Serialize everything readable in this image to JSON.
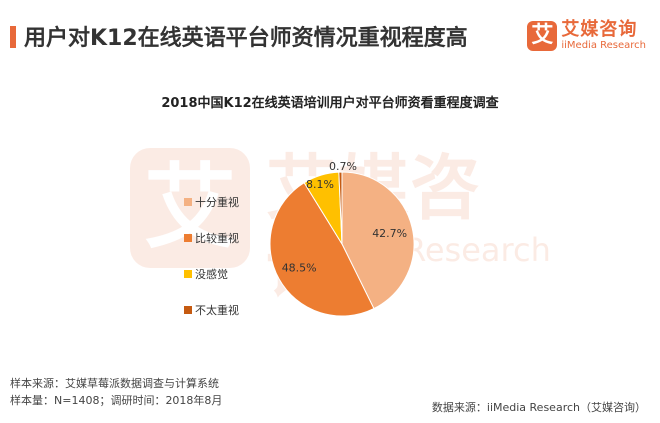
{
  "header": {
    "title": "用户对K12在线英语平台师资情况重视程度高",
    "accent_color": "#e8693a"
  },
  "brand": {
    "logo_char": "艾",
    "name": "艾媒咨询",
    "sub": "iiMedia Research"
  },
  "watermark": {
    "logo_char": "艾",
    "name": "艾媒咨询",
    "sub": "iiMedia Research"
  },
  "chart_data": {
    "type": "pie",
    "title": "2018中国K12在线英语培训用户对平台师资看重程度调查",
    "categories": [
      "十分重视",
      "比较重视",
      "没感觉",
      "不太重视"
    ],
    "values": [
      42.7,
      48.5,
      8.1,
      0.7
    ],
    "value_labels": [
      "42.7%",
      "48.5%",
      "8.1%",
      "0.7%"
    ],
    "colors": [
      "#f4b183",
      "#ed7d31",
      "#ffc000",
      "#c55a11"
    ],
    "legend_position": "left"
  },
  "footer": {
    "source_line1": "样本来源：艾媒草莓派数据调查与计算系统",
    "source_line2": "样本量：N=1408；调研时间：2018年8月",
    "source_right": "数据来源：iiMedia Research（艾媒咨询）"
  }
}
